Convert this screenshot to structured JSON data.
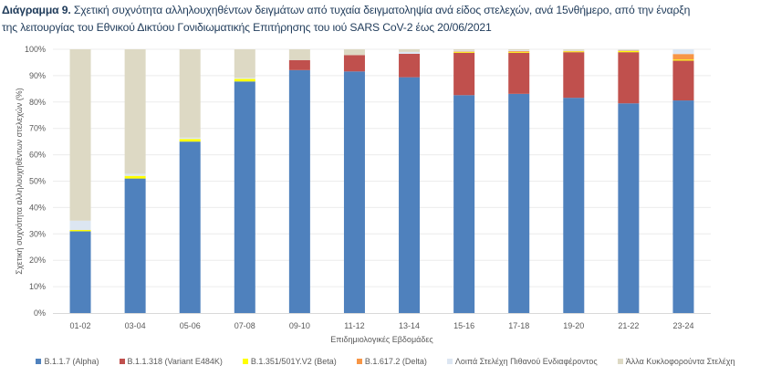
{
  "title": {
    "prefix": "Διάγραμμα 9.",
    "line1": " Σχετική συχνότητα αλληλουχηθέντων δειγμάτων από τυχαία δειγματοληψία ανά είδος στελεχών, ανά 15νθήμερο, από την έναρξη",
    "line2": "της λειτουργίας του Εθνικού Δικτύου Γονιδιωματικής Επιτήρησης του ιού SARS CoV-2 έως 20/06/2021"
  },
  "chart_data": {
    "type": "bar",
    "stacked": true,
    "percent_stacked": true,
    "xlabel": "Επιδημιολογικές Εβδομάδες",
    "ylabel": "Σχετική συχνότητα αλληλουχηθέντων στελεχών (%)",
    "ylim": [
      0,
      100
    ],
    "yticks": [
      "0%",
      "10%",
      "20%",
      "30%",
      "40%",
      "50%",
      "60%",
      "70%",
      "80%",
      "90%",
      "100%"
    ],
    "grid": true,
    "legend_position": "bottom",
    "categories": [
      "01-02",
      "03-04",
      "05-06",
      "07-08",
      "09-10",
      "11-12",
      "13-14",
      "15-16",
      "17-18",
      "19-20",
      "21-22",
      "23-24"
    ],
    "series": [
      {
        "name": "B.1.1.7 (Alpha)",
        "color": "#4f81bd",
        "values": [
          31.0,
          51.0,
          65.0,
          87.8,
          92.1,
          91.6,
          89.4,
          82.6,
          83.1,
          81.6,
          79.5,
          80.6
        ]
      },
      {
        "name": "B.1.1.318 (Variant E484K)",
        "color": "#c0504d",
        "values": [
          0,
          0,
          0,
          0,
          3.8,
          6.2,
          8.9,
          16.1,
          15.6,
          17.3,
          19.4,
          15.1
        ]
      },
      {
        "name": "B.1.351/501Y.V2 (Beta)",
        "color": "#ffff00",
        "values": [
          0.5,
          1.0,
          1.0,
          1.0,
          0,
          0,
          0,
          0.3,
          0.3,
          0.3,
          0.4,
          0.4
        ]
      },
      {
        "name": "B.1.617.2 (Delta)",
        "color": "#f79646",
        "values": [
          0,
          0,
          0,
          0,
          0,
          0,
          0,
          0.2,
          0.3,
          0.2,
          0.2,
          2.1
        ]
      },
      {
        "name": "Λοιπά Στελέχη Πιθανού Ενδιαφέροντος",
        "color": "#dce6f2",
        "values": [
          3.5,
          0.8,
          0.5,
          0.4,
          0,
          0,
          0.7,
          0.3,
          0.3,
          0.3,
          0.3,
          1.8
        ]
      },
      {
        "name": "Άλλα Κυκλοφορούντα Στελέχη",
        "color": "#ddd9c4",
        "values": [
          65.0,
          47.2,
          33.5,
          10.8,
          4.1,
          2.2,
          1.0,
          0.5,
          0.4,
          0.3,
          0.2,
          0
        ]
      }
    ]
  }
}
